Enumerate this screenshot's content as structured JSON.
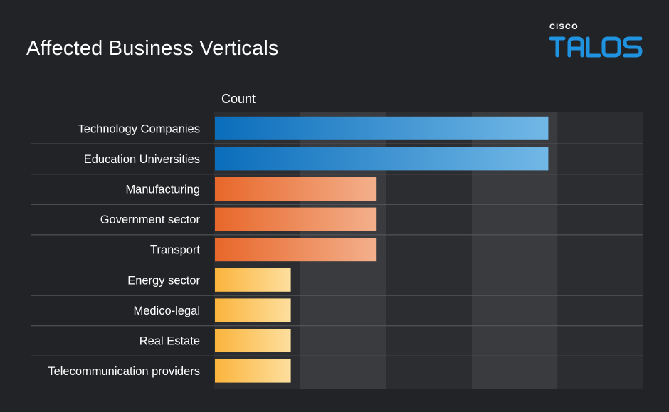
{
  "header": {
    "title": "Affected Business Verticals"
  },
  "logo": {
    "brand": "CISCO",
    "product": "TALOS"
  },
  "chart_data": {
    "type": "bar",
    "orientation": "horizontal",
    "title": "Affected Business Verticals",
    "ylabel": "Count",
    "categories": [
      "Technology Companies",
      "Education Universities",
      "Manufacturing",
      "Government sector",
      "Transport",
      "Energy sector",
      "Medico-legal",
      "Real Estate",
      "Telecommunication providers"
    ],
    "values": [
      4,
      4,
      2,
      2,
      2,
      1,
      1,
      1,
      1
    ],
    "xlim": [
      0,
      5
    ],
    "grid": "alternating-bands",
    "colors": {
      "Technology Companies": [
        "#0a6dbb",
        "#72b8e6"
      ],
      "Education Universities": [
        "#0a6dbb",
        "#72b8e6"
      ],
      "Manufacturing": [
        "#e8672a",
        "#f3b08c"
      ],
      "Government sector": [
        "#e8672a",
        "#f3b08c"
      ],
      "Transport": [
        "#e8672a",
        "#f3b08c"
      ],
      "Energy sector": [
        "#fbb43c",
        "#fddf9e"
      ],
      "Medico-legal": [
        "#fbb43c",
        "#fddf9e"
      ],
      "Real Estate": [
        "#fbb43c",
        "#fddf9e"
      ],
      "Telecommunication providers": [
        "#fbb43c",
        "#fddf9e"
      ]
    }
  }
}
